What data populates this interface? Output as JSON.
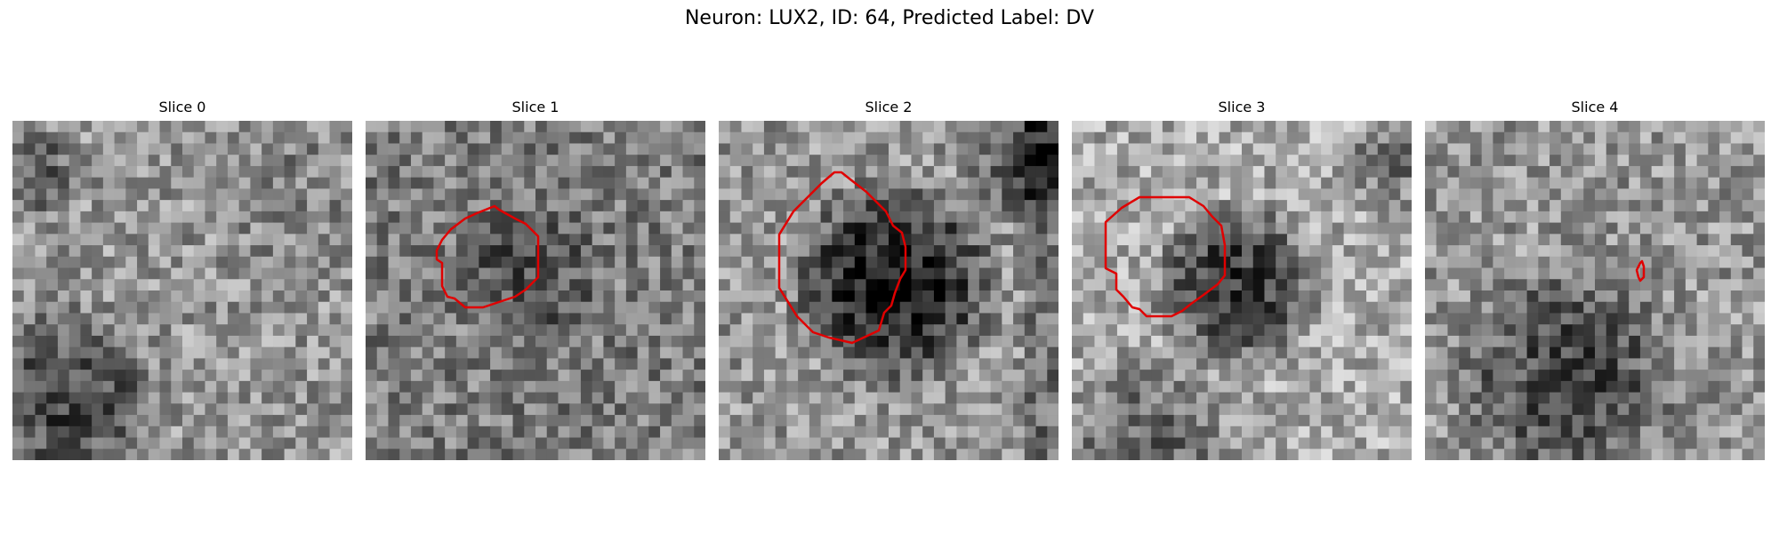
{
  "figure": {
    "title": "Neuron: LUX2, ID: 64, Predicted Label: DV"
  },
  "colors": {
    "contour": "#e00000"
  },
  "panels": [
    {
      "label": "Slice 0"
    },
    {
      "label": "Slice 1"
    },
    {
      "label": "Slice 2"
    },
    {
      "label": "Slice 3"
    },
    {
      "label": "Slice 4"
    }
  ]
}
